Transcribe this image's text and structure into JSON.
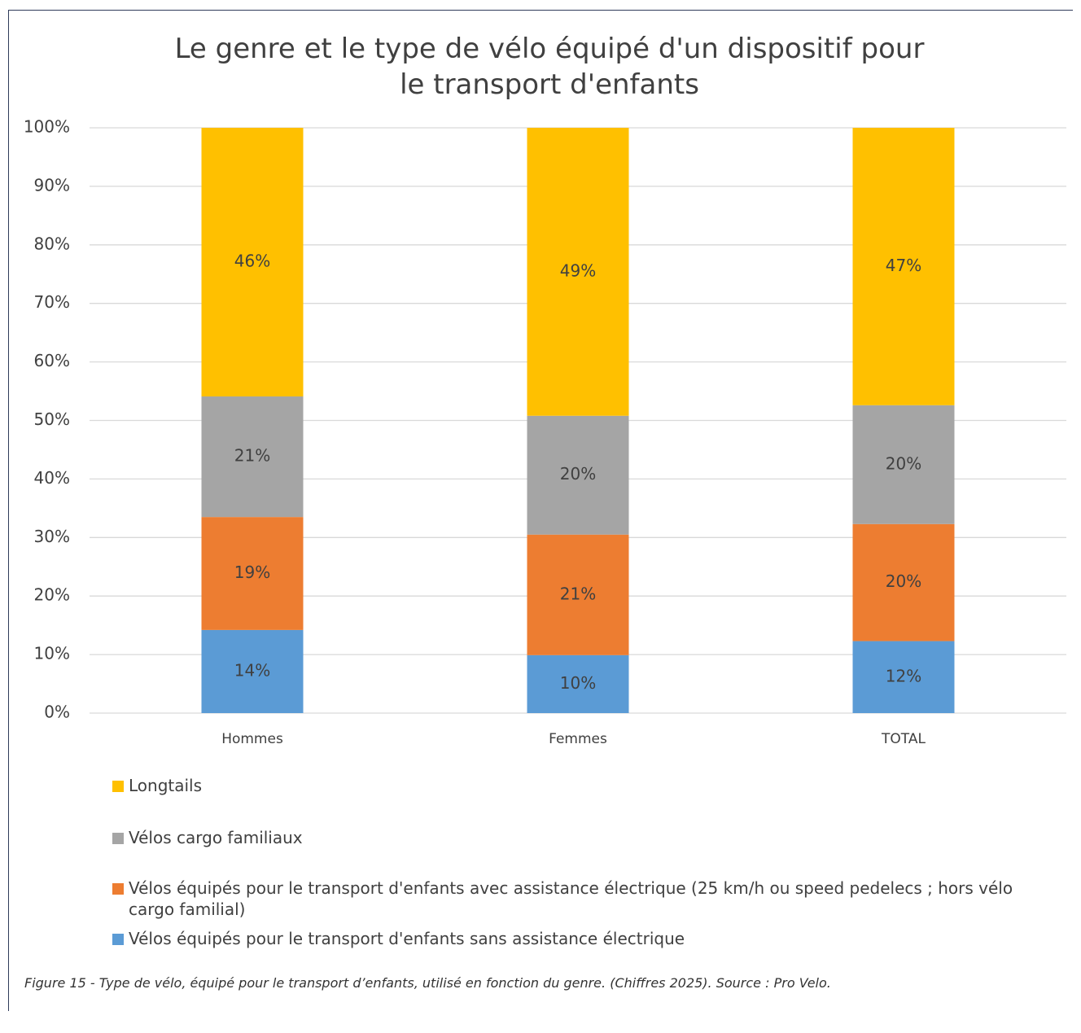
{
  "chart_data": {
    "type": "stacked_bar",
    "title": "Le genre et le type de vélo équipé d'un dispositif pour le transport d'enfants",
    "categories": [
      "Hommes",
      "Femmes",
      "TOTAL"
    ],
    "series": [
      {
        "name": "Vélos équipés pour le transport d'enfants sans assistance électrique",
        "color": "#5b9bd5",
        "values": [
          14.2,
          9.9,
          12.3
        ],
        "value_labels": [
          "14%",
          "10%",
          "12%"
        ]
      },
      {
        "name": "Vélos équipés pour le transport d'enfants avec assistance électrique (25 km/h ou speed pedelecs ; hors vélo cargo familial)",
        "color": "#ed7d31",
        "values": [
          19.3,
          20.6,
          20.0
        ],
        "value_labels": [
          "19%",
          "21%",
          "20%"
        ]
      },
      {
        "name": "Vélos cargo familiaux",
        "color": "#a5a5a5",
        "values": [
          20.6,
          20.3,
          20.3
        ],
        "value_labels": [
          "21%",
          "20%",
          "20%"
        ]
      },
      {
        "name": "Longtails",
        "color": "#ffc000",
        "values": [
          45.9,
          49.2,
          47.4
        ],
        "value_labels": [
          "46%",
          "49%",
          "47%"
        ]
      }
    ],
    "ylim": [
      0,
      100
    ],
    "yticks": [
      {
        "value": 0,
        "label": "0%"
      },
      {
        "value": 10,
        "label": "10%"
      },
      {
        "value": 20,
        "label": "20%"
      },
      {
        "value": 30,
        "label": "30%"
      },
      {
        "value": 40,
        "label": "40%"
      },
      {
        "value": 50,
        "label": "50%"
      },
      {
        "value": 60,
        "label": "60%"
      },
      {
        "value": 70,
        "label": "70%"
      },
      {
        "value": 80,
        "label": "80%"
      },
      {
        "value": 90,
        "label": "90%"
      },
      {
        "value": 100,
        "label": "100%"
      }
    ],
    "grid": true,
    "legend": "bottom",
    "caption": "Figure 15 - Type de vélo, équipé pour le transport d’enfants, utilisé en fonction du genre. (Chiffres 2025). Source : Pro Velo."
  }
}
